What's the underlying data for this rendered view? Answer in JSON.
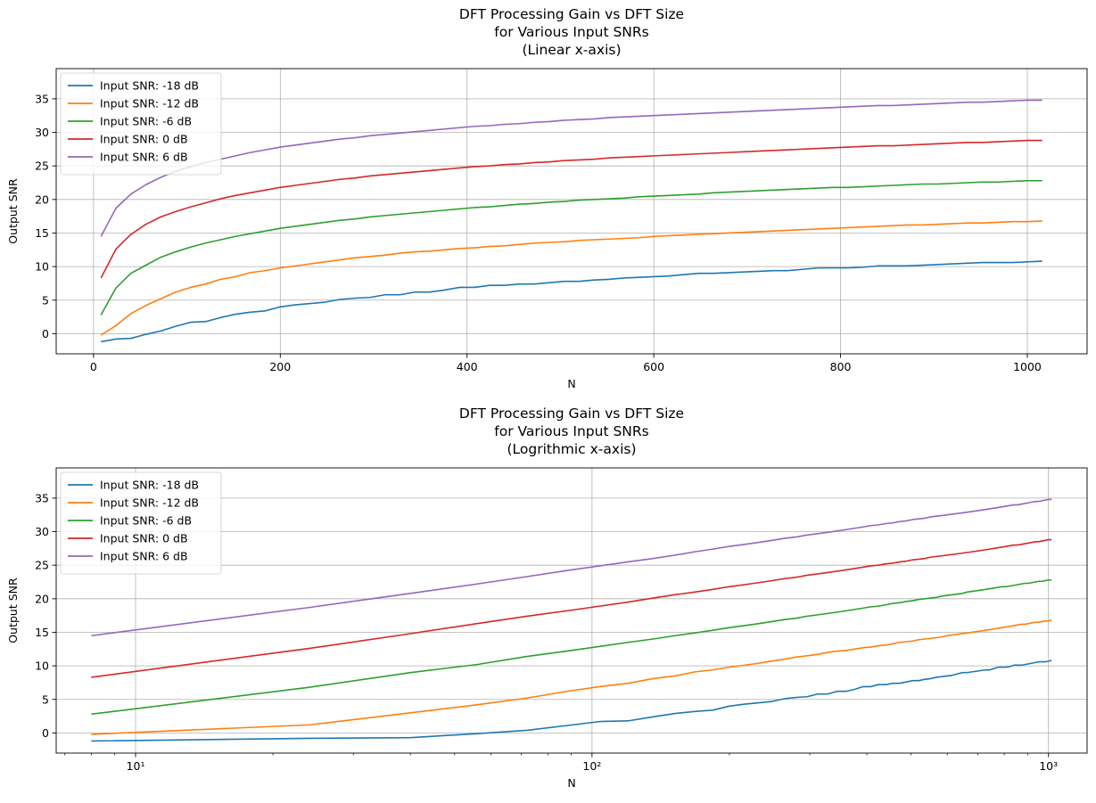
{
  "chart_data": [
    {
      "type": "line",
      "title": [
        "DFT Processing Gain vs DFT Size",
        "for Various Input SNRs",
        "(Linear x-axis)"
      ],
      "xlabel": "N",
      "ylabel": "Output SNR",
      "xscale": "linear",
      "xlim": [
        -40,
        1064
      ],
      "ylim": [
        -3,
        39.5
      ],
      "xticks": [
        0,
        200,
        400,
        600,
        800,
        1000
      ],
      "xtick_labels": [
        "0",
        "200",
        "400",
        "600",
        "800",
        "1000"
      ],
      "yticks": [
        0,
        5,
        10,
        15,
        20,
        25,
        30,
        35
      ],
      "ytick_labels": [
        "0",
        "5",
        "10",
        "15",
        "20",
        "25",
        "30",
        "35"
      ],
      "grid": true,
      "legend_position": "top-left"
    },
    {
      "type": "line",
      "title": [
        "DFT Processing Gain vs DFT Size",
        "for Various Input SNRs",
        "(Logrithmic x-axis)"
      ],
      "xlabel": "N",
      "ylabel": "Output SNR",
      "xscale": "log",
      "xlim": [
        6.7,
        1215
      ],
      "ylim": [
        -3,
        39.5
      ],
      "xticks": [
        10,
        100,
        1000
      ],
      "xtick_labels": [
        "10¹",
        "10²",
        "10³"
      ],
      "yticks": [
        0,
        5,
        10,
        15,
        20,
        25,
        30,
        35
      ],
      "ytick_labels": [
        "0",
        "5",
        "10",
        "15",
        "20",
        "25",
        "30",
        "35"
      ],
      "grid": true,
      "legend_position": "top-left"
    }
  ],
  "series": [
    {
      "name": "Input SNR: -18 dB",
      "color": "#1f77b4",
      "points": [
        [
          8,
          -1.2
        ],
        [
          24,
          -0.8
        ],
        [
          40,
          -0.7
        ],
        [
          56,
          -0.1
        ],
        [
          72,
          0.4
        ],
        [
          88,
          1.1
        ],
        [
          104,
          1.7
        ],
        [
          120,
          1.8
        ],
        [
          136,
          2.4
        ],
        [
          152,
          2.9
        ],
        [
          168,
          3.2
        ],
        [
          184,
          3.4
        ],
        [
          200,
          4.0
        ],
        [
          216,
          4.3
        ],
        [
          232,
          4.5
        ],
        [
          248,
          4.7
        ],
        [
          264,
          5.1
        ],
        [
          280,
          5.3
        ],
        [
          296,
          5.4
        ],
        [
          312,
          5.8
        ],
        [
          328,
          5.8
        ],
        [
          344,
          6.2
        ],
        [
          360,
          6.2
        ],
        [
          376,
          6.5
        ],
        [
          392,
          6.9
        ],
        [
          408,
          6.9
        ],
        [
          424,
          7.2
        ],
        [
          440,
          7.2
        ],
        [
          456,
          7.4
        ],
        [
          472,
          7.4
        ],
        [
          488,
          7.6
        ],
        [
          504,
          7.8
        ],
        [
          520,
          7.8
        ],
        [
          536,
          8.0
        ],
        [
          552,
          8.1
        ],
        [
          568,
          8.3
        ],
        [
          584,
          8.4
        ],
        [
          600,
          8.5
        ],
        [
          616,
          8.6
        ],
        [
          632,
          8.8
        ],
        [
          648,
          9.0
        ],
        [
          664,
          9.0
        ],
        [
          680,
          9.1
        ],
        [
          696,
          9.2
        ],
        [
          712,
          9.3
        ],
        [
          728,
          9.4
        ],
        [
          744,
          9.4
        ],
        [
          760,
          9.6
        ],
        [
          776,
          9.8
        ],
        [
          792,
          9.8
        ],
        [
          808,
          9.8
        ],
        [
          824,
          9.9
        ],
        [
          840,
          10.1
        ],
        [
          856,
          10.1
        ],
        [
          872,
          10.1
        ],
        [
          888,
          10.2
        ],
        [
          904,
          10.3
        ],
        [
          920,
          10.4
        ],
        [
          936,
          10.5
        ],
        [
          952,
          10.6
        ],
        [
          968,
          10.6
        ],
        [
          984,
          10.6
        ],
        [
          1000,
          10.7
        ],
        [
          1016,
          10.8
        ]
      ]
    },
    {
      "name": "Input SNR: -12 dB",
      "color": "#ff7f0e",
      "points": [
        [
          8,
          -0.2
        ],
        [
          24,
          1.2
        ],
        [
          40,
          3.0
        ],
        [
          56,
          4.2
        ],
        [
          72,
          5.2
        ],
        [
          88,
          6.2
        ],
        [
          104,
          6.9
        ],
        [
          120,
          7.4
        ],
        [
          136,
          8.1
        ],
        [
          152,
          8.5
        ],
        [
          168,
          9.1
        ],
        [
          184,
          9.4
        ],
        [
          200,
          9.8
        ],
        [
          216,
          10.1
        ],
        [
          232,
          10.4
        ],
        [
          248,
          10.7
        ],
        [
          264,
          11.0
        ],
        [
          280,
          11.3
        ],
        [
          296,
          11.5
        ],
        [
          312,
          11.7
        ],
        [
          328,
          12.0
        ],
        [
          344,
          12.2
        ],
        [
          360,
          12.3
        ],
        [
          376,
          12.5
        ],
        [
          392,
          12.7
        ],
        [
          408,
          12.8
        ],
        [
          424,
          13.0
        ],
        [
          440,
          13.1
        ],
        [
          456,
          13.3
        ],
        [
          472,
          13.5
        ],
        [
          488,
          13.6
        ],
        [
          504,
          13.7
        ],
        [
          520,
          13.9
        ],
        [
          536,
          14.0
        ],
        [
          552,
          14.1
        ],
        [
          568,
          14.2
        ],
        [
          584,
          14.3
        ],
        [
          600,
          14.5
        ],
        [
          616,
          14.6
        ],
        [
          632,
          14.7
        ],
        [
          648,
          14.8
        ],
        [
          664,
          14.9
        ],
        [
          680,
          15.0
        ],
        [
          696,
          15.1
        ],
        [
          712,
          15.2
        ],
        [
          728,
          15.3
        ],
        [
          744,
          15.4
        ],
        [
          760,
          15.5
        ],
        [
          776,
          15.6
        ],
        [
          792,
          15.7
        ],
        [
          808,
          15.8
        ],
        [
          824,
          15.9
        ],
        [
          840,
          16.0
        ],
        [
          856,
          16.1
        ],
        [
          872,
          16.2
        ],
        [
          888,
          16.2
        ],
        [
          904,
          16.3
        ],
        [
          920,
          16.4
        ],
        [
          936,
          16.5
        ],
        [
          952,
          16.5
        ],
        [
          968,
          16.6
        ],
        [
          984,
          16.7
        ],
        [
          1000,
          16.7
        ],
        [
          1016,
          16.8
        ]
      ]
    },
    {
      "name": "Input SNR: -6 dB",
      "color": "#2ca02c",
      "points": [
        [
          8,
          2.8
        ],
        [
          24,
          6.8
        ],
        [
          40,
          9.0
        ],
        [
          56,
          10.2
        ],
        [
          72,
          11.4
        ],
        [
          88,
          12.2
        ],
        [
          104,
          12.9
        ],
        [
          120,
          13.5
        ],
        [
          136,
          14.0
        ],
        [
          152,
          14.5
        ],
        [
          168,
          14.9
        ],
        [
          184,
          15.3
        ],
        [
          200,
          15.7
        ],
        [
          216,
          16.0
        ],
        [
          232,
          16.3
        ],
        [
          248,
          16.6
        ],
        [
          264,
          16.9
        ],
        [
          280,
          17.1
        ],
        [
          296,
          17.4
        ],
        [
          312,
          17.6
        ],
        [
          328,
          17.8
        ],
        [
          344,
          18.0
        ],
        [
          360,
          18.2
        ],
        [
          376,
          18.4
        ],
        [
          392,
          18.6
        ],
        [
          408,
          18.8
        ],
        [
          424,
          18.9
        ],
        [
          440,
          19.1
        ],
        [
          456,
          19.3
        ],
        [
          472,
          19.4
        ],
        [
          488,
          19.6
        ],
        [
          504,
          19.7
        ],
        [
          520,
          19.9
        ],
        [
          536,
          20.0
        ],
        [
          552,
          20.1
        ],
        [
          568,
          20.2
        ],
        [
          584,
          20.4
        ],
        [
          600,
          20.5
        ],
        [
          616,
          20.6
        ],
        [
          632,
          20.7
        ],
        [
          648,
          20.8
        ],
        [
          664,
          21.0
        ],
        [
          680,
          21.1
        ],
        [
          696,
          21.2
        ],
        [
          712,
          21.3
        ],
        [
          728,
          21.4
        ],
        [
          744,
          21.5
        ],
        [
          760,
          21.6
        ],
        [
          776,
          21.7
        ],
        [
          792,
          21.8
        ],
        [
          808,
          21.8
        ],
        [
          824,
          21.9
        ],
        [
          840,
          22.0
        ],
        [
          856,
          22.1
        ],
        [
          872,
          22.2
        ],
        [
          888,
          22.3
        ],
        [
          904,
          22.3
        ],
        [
          920,
          22.4
        ],
        [
          936,
          22.5
        ],
        [
          952,
          22.6
        ],
        [
          968,
          22.6
        ],
        [
          984,
          22.7
        ],
        [
          1000,
          22.8
        ],
        [
          1016,
          22.8
        ]
      ]
    },
    {
      "name": "Input SNR: 0 dB",
      "color": "#d62728",
      "points": [
        [
          8,
          8.3
        ],
        [
          24,
          12.6
        ],
        [
          40,
          14.8
        ],
        [
          56,
          16.3
        ],
        [
          72,
          17.4
        ],
        [
          88,
          18.2
        ],
        [
          104,
          18.9
        ],
        [
          120,
          19.5
        ],
        [
          136,
          20.1
        ],
        [
          152,
          20.6
        ],
        [
          168,
          21.0
        ],
        [
          184,
          21.4
        ],
        [
          200,
          21.8
        ],
        [
          216,
          22.1
        ],
        [
          232,
          22.4
        ],
        [
          248,
          22.7
        ],
        [
          264,
          23.0
        ],
        [
          280,
          23.2
        ],
        [
          296,
          23.5
        ],
        [
          312,
          23.7
        ],
        [
          328,
          23.9
        ],
        [
          344,
          24.1
        ],
        [
          360,
          24.3
        ],
        [
          376,
          24.5
        ],
        [
          392,
          24.7
        ],
        [
          408,
          24.9
        ],
        [
          424,
          25.0
        ],
        [
          440,
          25.2
        ],
        [
          456,
          25.3
        ],
        [
          472,
          25.5
        ],
        [
          488,
          25.6
        ],
        [
          504,
          25.8
        ],
        [
          520,
          25.9
        ],
        [
          536,
          26.0
        ],
        [
          552,
          26.2
        ],
        [
          568,
          26.3
        ],
        [
          584,
          26.4
        ],
        [
          600,
          26.5
        ],
        [
          616,
          26.6
        ],
        [
          632,
          26.7
        ],
        [
          648,
          26.8
        ],
        [
          664,
          26.9
        ],
        [
          680,
          27.0
        ],
        [
          696,
          27.1
        ],
        [
          712,
          27.2
        ],
        [
          728,
          27.3
        ],
        [
          744,
          27.4
        ],
        [
          760,
          27.5
        ],
        [
          776,
          27.6
        ],
        [
          792,
          27.7
        ],
        [
          808,
          27.8
        ],
        [
          824,
          27.9
        ],
        [
          840,
          28.0
        ],
        [
          856,
          28.0
        ],
        [
          872,
          28.1
        ],
        [
          888,
          28.2
        ],
        [
          904,
          28.3
        ],
        [
          920,
          28.4
        ],
        [
          936,
          28.5
        ],
        [
          952,
          28.5
        ],
        [
          968,
          28.6
        ],
        [
          984,
          28.7
        ],
        [
          1000,
          28.8
        ],
        [
          1016,
          28.8
        ]
      ]
    },
    {
      "name": "Input SNR: 6 dB",
      "color": "#9467bd",
      "points": [
        [
          8,
          14.5
        ],
        [
          24,
          18.7
        ],
        [
          40,
          20.8
        ],
        [
          56,
          22.2
        ],
        [
          72,
          23.3
        ],
        [
          88,
          24.2
        ],
        [
          104,
          24.9
        ],
        [
          120,
          25.5
        ],
        [
          136,
          26.0
        ],
        [
          152,
          26.5
        ],
        [
          168,
          27.0
        ],
        [
          184,
          27.4
        ],
        [
          200,
          27.8
        ],
        [
          216,
          28.1
        ],
        [
          232,
          28.4
        ],
        [
          248,
          28.7
        ],
        [
          264,
          29.0
        ],
        [
          280,
          29.2
        ],
        [
          296,
          29.5
        ],
        [
          312,
          29.7
        ],
        [
          328,
          29.9
        ],
        [
          344,
          30.1
        ],
        [
          360,
          30.3
        ],
        [
          376,
          30.5
        ],
        [
          392,
          30.7
        ],
        [
          408,
          30.9
        ],
        [
          424,
          31.0
        ],
        [
          440,
          31.2
        ],
        [
          456,
          31.3
        ],
        [
          472,
          31.5
        ],
        [
          488,
          31.6
        ],
        [
          504,
          31.8
        ],
        [
          520,
          31.9
        ],
        [
          536,
          32.0
        ],
        [
          552,
          32.2
        ],
        [
          568,
          32.3
        ],
        [
          584,
          32.4
        ],
        [
          600,
          32.5
        ],
        [
          616,
          32.6
        ],
        [
          632,
          32.7
        ],
        [
          648,
          32.8
        ],
        [
          664,
          32.9
        ],
        [
          680,
          33.0
        ],
        [
          696,
          33.1
        ],
        [
          712,
          33.2
        ],
        [
          728,
          33.3
        ],
        [
          744,
          33.4
        ],
        [
          760,
          33.5
        ],
        [
          776,
          33.6
        ],
        [
          792,
          33.7
        ],
        [
          808,
          33.8
        ],
        [
          824,
          33.9
        ],
        [
          840,
          34.0
        ],
        [
          856,
          34.0
        ],
        [
          872,
          34.1
        ],
        [
          888,
          34.2
        ],
        [
          904,
          34.3
        ],
        [
          920,
          34.4
        ],
        [
          936,
          34.5
        ],
        [
          952,
          34.5
        ],
        [
          968,
          34.6
        ],
        [
          984,
          34.7
        ],
        [
          1000,
          34.8
        ],
        [
          1016,
          34.8
        ]
      ]
    }
  ]
}
